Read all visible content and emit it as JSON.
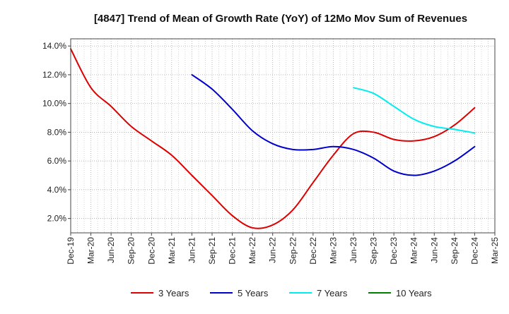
{
  "chart_data": {
    "type": "line",
    "title": "[4847]  Trend of Mean of Growth Rate (YoY) of 12Mo Mov Sum of Revenues",
    "xlabel": "",
    "ylabel": "",
    "ylim": [
      1.0,
      14.5
    ],
    "y_ticks": [
      2.0,
      4.0,
      6.0,
      8.0,
      10.0,
      12.0,
      14.0
    ],
    "y_tick_labels": [
      "2.0%",
      "4.0%",
      "6.0%",
      "8.0%",
      "10.0%",
      "12.0%",
      "14.0%"
    ],
    "x_range_months": [
      0,
      63
    ],
    "x_tick_labels": [
      "Dec-19",
      "Mar-20",
      "Jun-20",
      "Sep-20",
      "Dec-20",
      "Mar-21",
      "Jun-21",
      "Sep-21",
      "Dec-21",
      "Mar-22",
      "Jun-22",
      "Sep-22",
      "Dec-22",
      "Mar-23",
      "Jun-23",
      "Sep-23",
      "Dec-23",
      "Mar-24",
      "Jun-24",
      "Sep-24",
      "Dec-24",
      "Mar-25"
    ],
    "grid": true,
    "legend_position": "bottom",
    "series": [
      {
        "name": "3 Years",
        "color": "#dd0000",
        "points": [
          [
            0,
            13.8
          ],
          [
            3,
            11.1
          ],
          [
            6,
            9.8
          ],
          [
            9,
            8.4
          ],
          [
            12,
            7.4
          ],
          [
            15,
            6.4
          ],
          [
            18,
            5.0
          ],
          [
            21,
            3.6
          ],
          [
            24,
            2.2
          ],
          [
            27,
            1.35
          ],
          [
            30,
            1.55
          ],
          [
            33,
            2.6
          ],
          [
            36,
            4.5
          ],
          [
            39,
            6.4
          ],
          [
            42,
            7.9
          ],
          [
            45,
            8.0
          ],
          [
            48,
            7.5
          ],
          [
            51,
            7.4
          ],
          [
            54,
            7.7
          ],
          [
            57,
            8.5
          ],
          [
            60,
            9.7
          ]
        ]
      },
      {
        "name": "5 Years",
        "color": "#0000cc",
        "points": [
          [
            18,
            12.0
          ],
          [
            21,
            11.0
          ],
          [
            24,
            9.6
          ],
          [
            27,
            8.1
          ],
          [
            30,
            7.2
          ],
          [
            33,
            6.8
          ],
          [
            36,
            6.8
          ],
          [
            39,
            7.0
          ],
          [
            42,
            6.8
          ],
          [
            45,
            6.2
          ],
          [
            48,
            5.3
          ],
          [
            51,
            5.0
          ],
          [
            54,
            5.3
          ],
          [
            57,
            6.0
          ],
          [
            60,
            7.0
          ]
        ]
      },
      {
        "name": "7 Years",
        "color": "#00eeee",
        "points": [
          [
            42,
            11.1
          ],
          [
            45,
            10.7
          ],
          [
            48,
            9.8
          ],
          [
            51,
            8.9
          ],
          [
            54,
            8.4
          ],
          [
            57,
            8.2
          ],
          [
            60,
            7.95
          ]
        ]
      },
      {
        "name": "10 Years",
        "color": "#008000",
        "points": []
      }
    ]
  }
}
